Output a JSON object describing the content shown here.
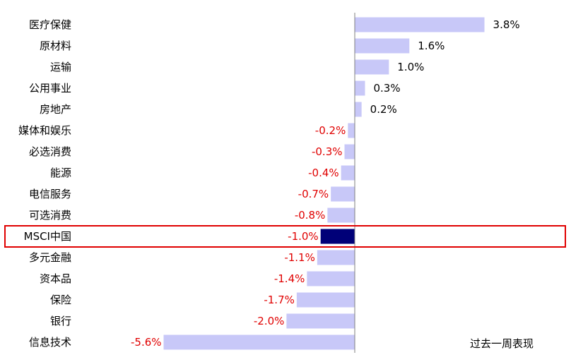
{
  "chart_data": {
    "type": "bar",
    "orientation": "horizontal",
    "categories": [
      "医疗保健",
      "原材料",
      "运输",
      "公用事业",
      "房地产",
      "媒体和娱乐",
      "必选消费",
      "能源",
      "电信服务",
      "可选消费",
      "MSCI中国",
      "多元金融",
      "资本品",
      "保险",
      "银行",
      "信息技术"
    ],
    "values": [
      3.8,
      1.6,
      1.0,
      0.3,
      0.2,
      -0.2,
      -0.3,
      -0.4,
      -0.7,
      -0.8,
      -1.0,
      -1.1,
      -1.4,
      -1.7,
      -2.0,
      -5.6
    ],
    "value_labels": [
      "3.8%",
      "1.6%",
      "1.0%",
      "0.3%",
      "0.2%",
      "-0.2%",
      "-0.3%",
      "-0.4%",
      "-0.7%",
      "-0.8%",
      "-1.0%",
      "-1.1%",
      "-1.4%",
      "-1.7%",
      "-2.0%",
      "-5.6%"
    ],
    "highlight_category": "MSCI中国",
    "legend": "过去一周表现",
    "legend_position": "bottom-right",
    "grid": false,
    "colors": {
      "bar": "#c8c8f8",
      "highlight_bar": "#000078",
      "positive_label": "#000000",
      "negative_label": "#e00000",
      "highlight_box": "#e00000",
      "axis": "#808080"
    }
  }
}
